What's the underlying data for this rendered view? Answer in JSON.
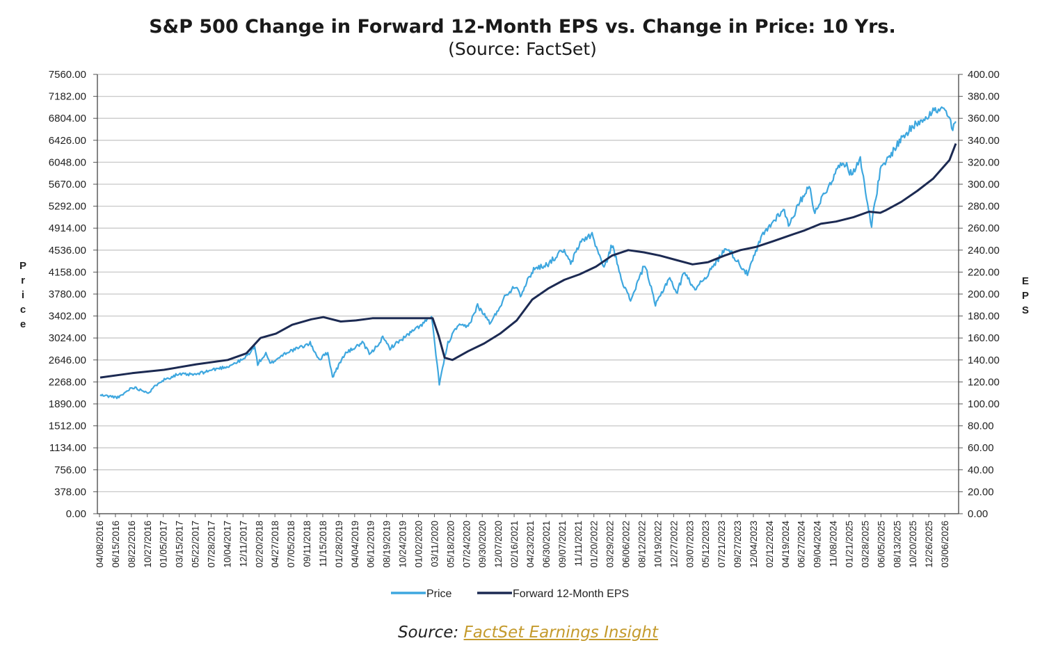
{
  "chart_data": {
    "type": "line",
    "title": "S&P 500 Change in Forward 12-Month EPS vs. Change in Price: 10 Yrs.",
    "subtitle": "(Source: FactSet)",
    "ylabel_left": "Price",
    "ylabel_right": "EPS",
    "y_left_ticks": [
      "0.00",
      "378.00",
      "756.00",
      "1134.00",
      "1512.00",
      "1890.00",
      "2268.00",
      "2646.00",
      "3024.00",
      "3402.00",
      "3780.00",
      "4158.00",
      "4536.00",
      "4914.00",
      "5292.00",
      "5670.00",
      "6048.00",
      "6426.00",
      "6804.00",
      "7182.00",
      "7560.00"
    ],
    "y_right_ticks": [
      "0.00",
      "20.00",
      "40.00",
      "60.00",
      "80.00",
      "100.00",
      "120.00",
      "140.00",
      "160.00",
      "180.00",
      "200.00",
      "220.00",
      "240.00",
      "260.00",
      "280.00",
      "300.00",
      "320.00",
      "340.00",
      "360.00",
      "380.00",
      "400.00"
    ],
    "ylim_left": [
      0,
      7560
    ],
    "ylim_right": [
      0,
      400
    ],
    "x_tick_labels": [
      "04/08/2016",
      "06/15/2016",
      "08/22/2016",
      "10/27/2016",
      "01/05/2017",
      "03/15/2017",
      "05/22/2017",
      "07/28/2017",
      "10/04/2017",
      "12/11/2017",
      "02/20/2018",
      "04/27/2018",
      "07/05/2018",
      "09/11/2018",
      "11/15/2018",
      "01/28/2019",
      "04/04/2019",
      "06/12/2019",
      "08/19/2019",
      "10/24/2019",
      "01/02/2020",
      "03/11/2020",
      "05/18/2020",
      "07/24/2020",
      "09/30/2020",
      "12/07/2020",
      "02/16/2021",
      "04/23/2021",
      "06/30/2021",
      "09/07/2021",
      "11/11/2021",
      "01/20/2022",
      "03/29/2022",
      "06/06/2022",
      "08/12/2022",
      "10/19/2022",
      "12/27/2022",
      "03/07/2023",
      "05/12/2023",
      "07/21/2023",
      "09/27/2023",
      "12/04/2023",
      "02/12/2024",
      "04/19/2024",
      "06/27/2024",
      "09/04/2024",
      "11/08/2024",
      "01/21/2025",
      "03/28/2025",
      "06/05/2025",
      "08/13/2025",
      "10/20/2025",
      "12/26/2025",
      "03/06/2026"
    ],
    "grid": true,
    "legend_position": "bottom",
    "series": [
      {
        "name": "Price",
        "axis": "left",
        "color": "#3ea7df",
        "points": [
          [
            "04/08/2016",
            2040
          ],
          [
            "06/27/2016",
            2000
          ],
          [
            "08/22/2016",
            2180
          ],
          [
            "11/04/2016",
            2085
          ],
          [
            "12/15/2016",
            2270
          ],
          [
            "03/01/2017",
            2395
          ],
          [
            "05/22/2017",
            2395
          ],
          [
            "07/28/2017",
            2475
          ],
          [
            "10/04/2017",
            2535
          ],
          [
            "12/11/2017",
            2660
          ],
          [
            "01/26/2018",
            2870
          ],
          [
            "02/08/2018",
            2580
          ],
          [
            "03/15/2018",
            2750
          ],
          [
            "04/02/2018",
            2580
          ],
          [
            "06/12/2018",
            2780
          ],
          [
            "07/26/2018",
            2840
          ],
          [
            "09/20/2018",
            2930
          ],
          [
            "10/29/2018",
            2650
          ],
          [
            "12/04/2018",
            2780
          ],
          [
            "12/24/2018",
            2350
          ],
          [
            "02/14/2019",
            2750
          ],
          [
            "04/30/2019",
            2940
          ],
          [
            "06/03/2019",
            2740
          ],
          [
            "07/26/2019",
            3025
          ],
          [
            "08/26/2019",
            2850
          ],
          [
            "10/28/2019",
            3040
          ],
          [
            "12/31/2019",
            3230
          ],
          [
            "02/19/2020",
            3390
          ],
          [
            "03/23/2020",
            2240
          ],
          [
            "04/29/2020",
            2940
          ],
          [
            "06/08/2020",
            3230
          ],
          [
            "07/24/2020",
            3220
          ],
          [
            "09/02/2020",
            3580
          ],
          [
            "10/28/2020",
            3270
          ],
          [
            "12/31/2020",
            3760
          ],
          [
            "02/12/2021",
            3930
          ],
          [
            "03/04/2021",
            3770
          ],
          [
            "04/29/2021",
            4210
          ],
          [
            "06/30/2021",
            4300
          ],
          [
            "09/02/2021",
            4540
          ],
          [
            "10/04/2021",
            4300
          ],
          [
            "11/18/2021",
            4700
          ],
          [
            "01/03/2022",
            4800
          ],
          [
            "02/23/2022",
            4220
          ],
          [
            "03/29/2022",
            4630
          ],
          [
            "05/20/2022",
            3900
          ],
          [
            "06/16/2022",
            3670
          ],
          [
            "08/16/2022",
            4300
          ],
          [
            "09/30/2022",
            3585
          ],
          [
            "11/30/2022",
            4080
          ],
          [
            "12/28/2022",
            3780
          ],
          [
            "02/02/2023",
            4180
          ],
          [
            "03/13/2023",
            3855
          ],
          [
            "05/12/2023",
            4125
          ],
          [
            "07/31/2023",
            4590
          ],
          [
            "10/27/2023",
            4120
          ],
          [
            "12/28/2023",
            4780
          ],
          [
            "03/28/2024",
            5250
          ],
          [
            "04/19/2024",
            4970
          ],
          [
            "07/16/2024",
            5670
          ],
          [
            "08/05/2024",
            5190
          ],
          [
            "09/06/2024",
            5410
          ],
          [
            "12/06/2024",
            6090
          ],
          [
            "01/13/2025",
            5830
          ],
          [
            "02/19/2025",
            6145
          ],
          [
            "03/13/2025",
            5520
          ],
          [
            "04/08/2025",
            4980
          ],
          [
            "05/15/2025",
            5900
          ],
          [
            "06/27/2025",
            6170
          ],
          [
            "08/13/2025",
            6460
          ],
          [
            "10/20/2025",
            6730
          ],
          [
            "12/26/2025",
            6930
          ],
          [
            "02/10/2026",
            6950
          ],
          [
            "03/06/2026",
            6800
          ],
          [
            "03/20/2026",
            6590
          ],
          [
            "04/02/2026",
            6750
          ]
        ]
      },
      {
        "name": "Forward 12-Month EPS",
        "axis": "right",
        "color": "#1c2a52",
        "points": [
          [
            "04/08/2016",
            124
          ],
          [
            "08/22/2016",
            128
          ],
          [
            "01/05/2017",
            131
          ],
          [
            "05/22/2017",
            136
          ],
          [
            "10/04/2017",
            140
          ],
          [
            "12/22/2017",
            146
          ],
          [
            "02/20/2018",
            160
          ],
          [
            "04/27/2018",
            164
          ],
          [
            "07/05/2018",
            172
          ],
          [
            "09/25/2018",
            177
          ],
          [
            "11/15/2018",
            179
          ],
          [
            "01/28/2019",
            175
          ],
          [
            "04/04/2019",
            176
          ],
          [
            "06/12/2019",
            178
          ],
          [
            "08/19/2019",
            178
          ],
          [
            "10/24/2019",
            178
          ],
          [
            "01/02/2020",
            178
          ],
          [
            "02/24/2020",
            178
          ],
          [
            "03/20/2020",
            162
          ],
          [
            "04/15/2020",
            142
          ],
          [
            "05/18/2020",
            140
          ],
          [
            "07/24/2020",
            148
          ],
          [
            "09/30/2020",
            155
          ],
          [
            "12/07/2020",
            164
          ],
          [
            "02/16/2021",
            176
          ],
          [
            "04/23/2021",
            195
          ],
          [
            "06/30/2021",
            205
          ],
          [
            "09/07/2021",
            213
          ],
          [
            "11/11/2021",
            218
          ],
          [
            "01/20/2022",
            225
          ],
          [
            "03/29/2022",
            235
          ],
          [
            "06/06/2022",
            240
          ],
          [
            "08/12/2022",
            238
          ],
          [
            "10/19/2022",
            235
          ],
          [
            "12/27/2022",
            231
          ],
          [
            "03/07/2023",
            227
          ],
          [
            "05/12/2023",
            229
          ],
          [
            "07/21/2023",
            235
          ],
          [
            "09/27/2023",
            240
          ],
          [
            "12/04/2023",
            243
          ],
          [
            "02/12/2024",
            248
          ],
          [
            "04/19/2024",
            253
          ],
          [
            "06/27/2024",
            258
          ],
          [
            "09/04/2024",
            264
          ],
          [
            "11/08/2024",
            266
          ],
          [
            "01/21/2025",
            270
          ],
          [
            "03/28/2025",
            275
          ],
          [
            "05/15/2025",
            274
          ],
          [
            "06/05/2025",
            276
          ],
          [
            "08/13/2025",
            284
          ],
          [
            "10/20/2025",
            294
          ],
          [
            "12/26/2025",
            305
          ],
          [
            "03/06/2026",
            322
          ],
          [
            "04/02/2026",
            337
          ]
        ]
      }
    ]
  },
  "source": {
    "label": "Source:",
    "link_text": "FactSet Earnings Insight"
  }
}
